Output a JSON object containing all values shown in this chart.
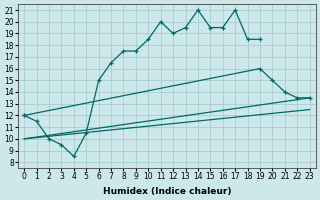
{
  "xlabel": "Humidex (Indice chaleur)",
  "bg_color": "#cce8ea",
  "grid_color": "#aaccce",
  "line_color": "#006868",
  "xlim": [
    -0.5,
    23.5
  ],
  "ylim": [
    7.5,
    21.5
  ],
  "xticks": [
    0,
    1,
    2,
    3,
    4,
    5,
    6,
    7,
    8,
    9,
    10,
    11,
    12,
    13,
    14,
    15,
    16,
    17,
    18,
    19,
    20,
    21,
    22,
    23
  ],
  "yticks": [
    8,
    9,
    10,
    11,
    12,
    13,
    14,
    15,
    16,
    17,
    18,
    19,
    20,
    21
  ],
  "series": [
    {
      "x": [
        0,
        1,
        2,
        3,
        4,
        5,
        6,
        7,
        8,
        9,
        10,
        11,
        12,
        13,
        14,
        15,
        16,
        17,
        18,
        19
      ],
      "y": [
        12,
        11.5,
        10,
        9.5,
        8.5,
        10.5,
        15,
        16.5,
        17.5,
        17.5,
        18.5,
        20,
        19,
        19.5,
        21,
        19.5,
        19.5,
        21,
        18.5,
        18.5
      ],
      "marker": true
    },
    {
      "x": [
        0,
        19,
        20,
        21,
        22,
        23
      ],
      "y": [
        12,
        16,
        15,
        14,
        13.5,
        13.5
      ],
      "marker": true
    },
    {
      "x": [
        0,
        23
      ],
      "y": [
        10,
        13.5
      ],
      "marker": false
    },
    {
      "x": [
        0,
        23
      ],
      "y": [
        10,
        12.5
      ],
      "marker": false
    }
  ]
}
